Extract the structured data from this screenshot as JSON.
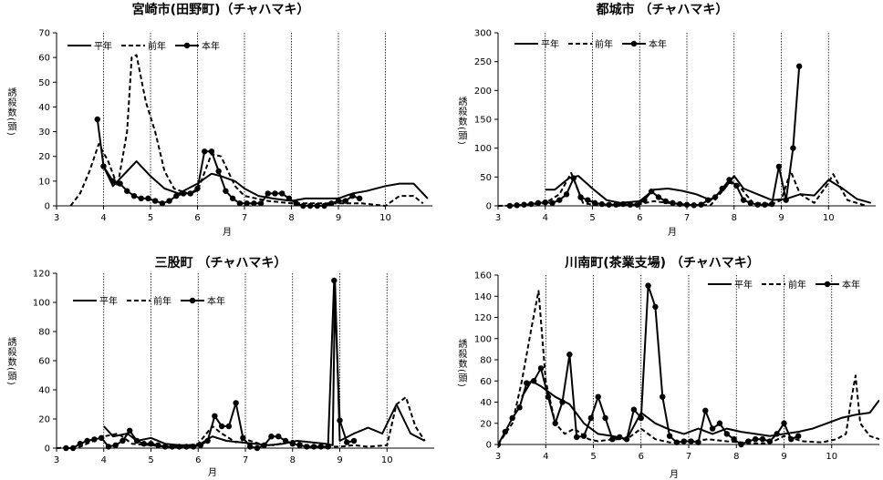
{
  "legend_labels": [
    "平年",
    "前年",
    "本年"
  ],
  "chart_data": [
    {
      "type": "line",
      "title": "宮崎市(田野町)（チャハマキ）",
      "xlabel": "月",
      "ylabel": "誘殺数(頭)",
      "xlim": [
        3,
        11
      ],
      "ylim": [
        0,
        70
      ],
      "xticks": [
        3,
        4,
        5,
        6,
        7,
        8,
        9,
        10
      ],
      "yticks": [
        0,
        10,
        20,
        30,
        40,
        50,
        60,
        70
      ],
      "grid": "vertical lines at month boundaries",
      "legend": "top-left",
      "series": [
        {
          "name": "平年",
          "style": "solid",
          "x": [
            4.0,
            4.2,
            4.5,
            4.7,
            5.0,
            5.3,
            5.6,
            6.0,
            6.3,
            6.5,
            6.8,
            7.0,
            7.3,
            7.6,
            8.0,
            8.3,
            8.6,
            9.0,
            9.3,
            9.6,
            10.0,
            10.3,
            10.6,
            10.9
          ],
          "y": [
            16,
            8,
            14,
            18,
            12,
            7,
            5,
            9,
            13,
            12,
            10,
            7,
            4,
            3,
            2,
            3,
            3,
            3,
            5,
            6,
            8,
            9,
            9,
            3
          ]
        },
        {
          "name": "前年",
          "style": "dashed",
          "x": [
            3.3,
            3.5,
            3.7,
            3.9,
            4.1,
            4.3,
            4.5,
            4.6,
            4.7,
            4.9,
            5.1,
            5.3,
            5.5,
            5.8,
            6.0,
            6.3,
            6.5,
            6.8,
            7.0,
            7.5,
            8.0,
            8.5,
            9.0,
            9.5,
            10.0,
            10.3,
            10.6,
            10.8
          ],
          "y": [
            0,
            5,
            14,
            25,
            18,
            8,
            30,
            60,
            61,
            42,
            30,
            14,
            7,
            5,
            6,
            21,
            20,
            8,
            4,
            2,
            1,
            1,
            1,
            1,
            0,
            4,
            4,
            1
          ]
        },
        {
          "name": "本年",
          "style": "solid-dot",
          "x": [
            3.87,
            4.0,
            4.2,
            4.35,
            4.5,
            4.65,
            4.8,
            4.95,
            5.1,
            5.25,
            5.4,
            5.55,
            5.7,
            5.85,
            6.0,
            6.15,
            6.3,
            6.45,
            6.6,
            6.75,
            6.9,
            7.05,
            7.2,
            7.35,
            7.5,
            7.65,
            7.8,
            7.95,
            8.1,
            8.25,
            8.4,
            8.55,
            8.7,
            8.85,
            9.0,
            9.15,
            9.3,
            9.45
          ],
          "y": [
            35,
            16,
            10,
            9,
            6,
            4,
            3,
            3,
            2,
            1,
            2,
            4,
            5,
            5,
            7,
            22,
            22,
            14,
            6,
            3,
            1,
            1,
            1,
            1,
            5,
            5,
            5,
            3,
            1,
            0,
            0,
            0,
            0,
            1,
            2,
            2,
            4,
            3
          ]
        }
      ]
    },
    {
      "type": "line",
      "title": "都城市 （チャハマキ）",
      "xlabel": "月",
      "ylabel": "誘殺数(頭)",
      "xlim": [
        3,
        11
      ],
      "ylim": [
        0,
        300
      ],
      "xticks": [
        3,
        4,
        5,
        6,
        7,
        8,
        9,
        10
      ],
      "yticks": [
        0,
        50,
        100,
        150,
        200,
        250,
        300
      ],
      "grid": "vertical lines at month boundaries",
      "legend": "top-left",
      "series": [
        {
          "name": "平年",
          "style": "solid",
          "x": [
            4.0,
            4.2,
            4.5,
            4.7,
            5.0,
            5.3,
            5.6,
            6.0,
            6.3,
            6.6,
            6.9,
            7.2,
            7.5,
            7.8,
            8.0,
            8.2,
            8.5,
            8.8,
            9.1,
            9.4,
            9.7,
            10.0,
            10.3,
            10.6,
            10.9
          ],
          "y": [
            28,
            28,
            48,
            52,
            30,
            10,
            5,
            8,
            28,
            30,
            26,
            20,
            10,
            30,
            52,
            30,
            20,
            10,
            12,
            20,
            18,
            45,
            30,
            12,
            5
          ]
        },
        {
          "name": "前年",
          "style": "dashed",
          "x": [
            3.0,
            3.5,
            4.0,
            4.3,
            4.55,
            4.8,
            5.0,
            5.3,
            5.6,
            6.0,
            6.3,
            6.6,
            7.0,
            7.5,
            7.9,
            8.1,
            8.4,
            8.8,
            9.0,
            9.2,
            9.4,
            9.7,
            10.0,
            10.1,
            10.4,
            10.8
          ],
          "y": [
            0,
            1,
            5,
            20,
            57,
            5,
            2,
            1,
            0,
            3,
            8,
            5,
            2,
            1,
            40,
            35,
            5,
            3,
            10,
            60,
            20,
            5,
            40,
            55,
            10,
            0
          ]
        },
        {
          "name": "本年",
          "style": "solid-dot",
          "x": [
            3.25,
            3.4,
            3.55,
            3.7,
            3.85,
            4.0,
            4.15,
            4.3,
            4.45,
            4.6,
            4.75,
            4.9,
            5.05,
            5.2,
            5.35,
            5.5,
            5.65,
            5.8,
            5.95,
            6.1,
            6.25,
            6.4,
            6.55,
            6.7,
            6.85,
            7.0,
            7.15,
            7.3,
            7.45,
            7.6,
            7.75,
            7.9,
            8.05,
            8.2,
            8.35,
            8.5,
            8.65,
            8.8,
            8.95,
            9.1,
            9.25,
            9.38
          ],
          "y": [
            0,
            1,
            2,
            3,
            5,
            6,
            5,
            10,
            20,
            48,
            15,
            10,
            5,
            3,
            2,
            2,
            3,
            2,
            2,
            10,
            25,
            15,
            8,
            5,
            3,
            2,
            1,
            2,
            10,
            15,
            30,
            45,
            35,
            10,
            5,
            2,
            2,
            3,
            68,
            10,
            100,
            242
          ]
        }
      ]
    },
    {
      "type": "line",
      "title": "三股町 （チャハマキ）",
      "xlabel": "月",
      "ylabel": "誘殺数(頭)",
      "xlim": [
        3,
        11
      ],
      "ylim": [
        0,
        120
      ],
      "xticks": [
        3,
        4,
        5,
        6,
        7,
        8,
        9,
        10
      ],
      "yticks": [
        0,
        20,
        40,
        60,
        80,
        100,
        120
      ],
      "grid": "vertical lines at month boundaries",
      "legend": "top-left",
      "series": [
        {
          "name": "平年",
          "style": "solid",
          "x": [
            4.0,
            4.2,
            4.5,
            4.7,
            5.0,
            5.3,
            5.6,
            6.0,
            6.3,
            6.6,
            6.9,
            7.2,
            7.5,
            7.8,
            8.1,
            8.4,
            8.7,
            8.85,
            8.9,
            9.0,
            9.3,
            9.6,
            9.9,
            10.2,
            10.5,
            10.8
          ],
          "y": [
            15,
            8,
            10,
            5,
            7,
            3,
            2,
            2,
            8,
            5,
            4,
            3,
            2,
            3,
            5,
            4,
            3,
            2,
            113,
            5,
            10,
            14,
            10,
            30,
            10,
            5
          ]
        },
        {
          "name": "前年",
          "style": "dashed",
          "x": [
            3.0,
            3.5,
            4.0,
            4.3,
            4.6,
            5.0,
            5.3,
            5.6,
            6.0,
            6.3,
            6.5,
            6.8,
            7.0,
            7.3,
            7.6,
            8.0,
            8.3,
            8.6,
            9.0,
            9.3,
            9.6,
            10.0,
            10.2,
            10.4,
            10.6,
            10.8
          ],
          "y": [
            0,
            1,
            8,
            10,
            3,
            2,
            1,
            1,
            3,
            15,
            10,
            4,
            6,
            3,
            2,
            5,
            2,
            1,
            1,
            2,
            1,
            2,
            30,
            35,
            15,
            5
          ]
        },
        {
          "name": "本年",
          "style": "solid-dot",
          "x": [
            3.2,
            3.35,
            3.5,
            3.65,
            3.8,
            3.95,
            4.1,
            4.25,
            4.4,
            4.55,
            4.7,
            4.85,
            5.0,
            5.15,
            5.3,
            5.45,
            5.6,
            5.75,
            5.9,
            6.05,
            6.2,
            6.35,
            6.5,
            6.65,
            6.8,
            6.95,
            7.1,
            7.25,
            7.4,
            7.55,
            7.7,
            7.85,
            8.0,
            8.15,
            8.3,
            8.45,
            8.6,
            8.75,
            8.88,
            9.0,
            9.15,
            9.3
          ],
          "y": [
            0,
            0,
            3,
            5,
            6,
            7,
            1,
            2,
            5,
            12,
            5,
            3,
            3,
            2,
            1,
            1,
            1,
            1,
            1,
            2,
            5,
            22,
            15,
            15,
            31,
            7,
            1,
            0,
            2,
            8,
            8,
            5,
            3,
            2,
            1,
            1,
            1,
            1,
            115,
            19,
            4,
            5
          ]
        }
      ]
    },
    {
      "type": "line",
      "title": "川南町(茶業支場) （チャハマキ）",
      "xlabel": "月",
      "ylabel": "誘殺数(頭)",
      "xlim": [
        3,
        11
      ],
      "ylim": [
        0,
        160
      ],
      "xticks": [
        3,
        4,
        5,
        6,
        7,
        8,
        9,
        10
      ],
      "yticks": [
        0,
        20,
        40,
        60,
        80,
        100,
        120,
        140,
        160
      ],
      "grid": "vertical lines at month boundaries",
      "legend": "top-right",
      "series": [
        {
          "name": "平年",
          "style": "solid",
          "x": [
            3.5,
            3.7,
            3.9,
            4.2,
            4.5,
            4.8,
            5.1,
            5.4,
            5.7,
            6.0,
            6.3,
            6.6,
            6.9,
            7.2,
            7.5,
            7.8,
            8.1,
            8.4,
            8.7,
            9.0,
            9.3,
            9.6,
            9.9,
            10.2,
            10.5,
            10.8,
            11.0
          ],
          "y": [
            45,
            60,
            55,
            45,
            38,
            20,
            10,
            8,
            5,
            30,
            20,
            14,
            10,
            15,
            10,
            15,
            12,
            10,
            8,
            10,
            12,
            15,
            20,
            25,
            28,
            30,
            42
          ]
        },
        {
          "name": "前年",
          "style": "dashed",
          "x": [
            3.0,
            3.3,
            3.5,
            3.7,
            3.85,
            4.0,
            4.2,
            4.4,
            4.6,
            4.9,
            5.1,
            5.4,
            5.7,
            6.0,
            6.3,
            6.6,
            7.0,
            7.4,
            7.8,
            8.1,
            8.4,
            8.7,
            9.0,
            9.4,
            9.8,
            10.1,
            10.3,
            10.4,
            10.5,
            10.6,
            10.8,
            11.0
          ],
          "y": [
            0,
            20,
            60,
            110,
            145,
            60,
            20,
            10,
            15,
            5,
            3,
            5,
            5,
            15,
            5,
            2,
            2,
            5,
            3,
            2,
            1,
            1,
            8,
            3,
            2,
            5,
            10,
            40,
            65,
            20,
            8,
            5
          ]
        },
        {
          "name": "本年",
          "style": "solid-dot",
          "x": [
            3.0,
            3.15,
            3.3,
            3.45,
            3.6,
            3.75,
            3.9,
            4.05,
            4.2,
            4.35,
            4.5,
            4.65,
            4.8,
            4.95,
            5.1,
            5.25,
            5.4,
            5.55,
            5.7,
            5.85,
            6.0,
            6.15,
            6.3,
            6.45,
            6.6,
            6.75,
            6.9,
            7.05,
            7.2,
            7.35,
            7.5,
            7.65,
            7.8,
            7.95,
            8.1,
            8.25,
            8.4,
            8.55,
            8.7,
            8.85,
            9.0,
            9.15,
            9.3
          ],
          "y": [
            0,
            12,
            25,
            35,
            58,
            60,
            72,
            45,
            20,
            40,
            85,
            7,
            8,
            25,
            45,
            25,
            5,
            7,
            5,
            33,
            25,
            150,
            130,
            45,
            8,
            2,
            3,
            3,
            2,
            32,
            15,
            20,
            10,
            5,
            0,
            3,
            5,
            5,
            3,
            10,
            20,
            5,
            8
          ]
        }
      ]
    }
  ]
}
